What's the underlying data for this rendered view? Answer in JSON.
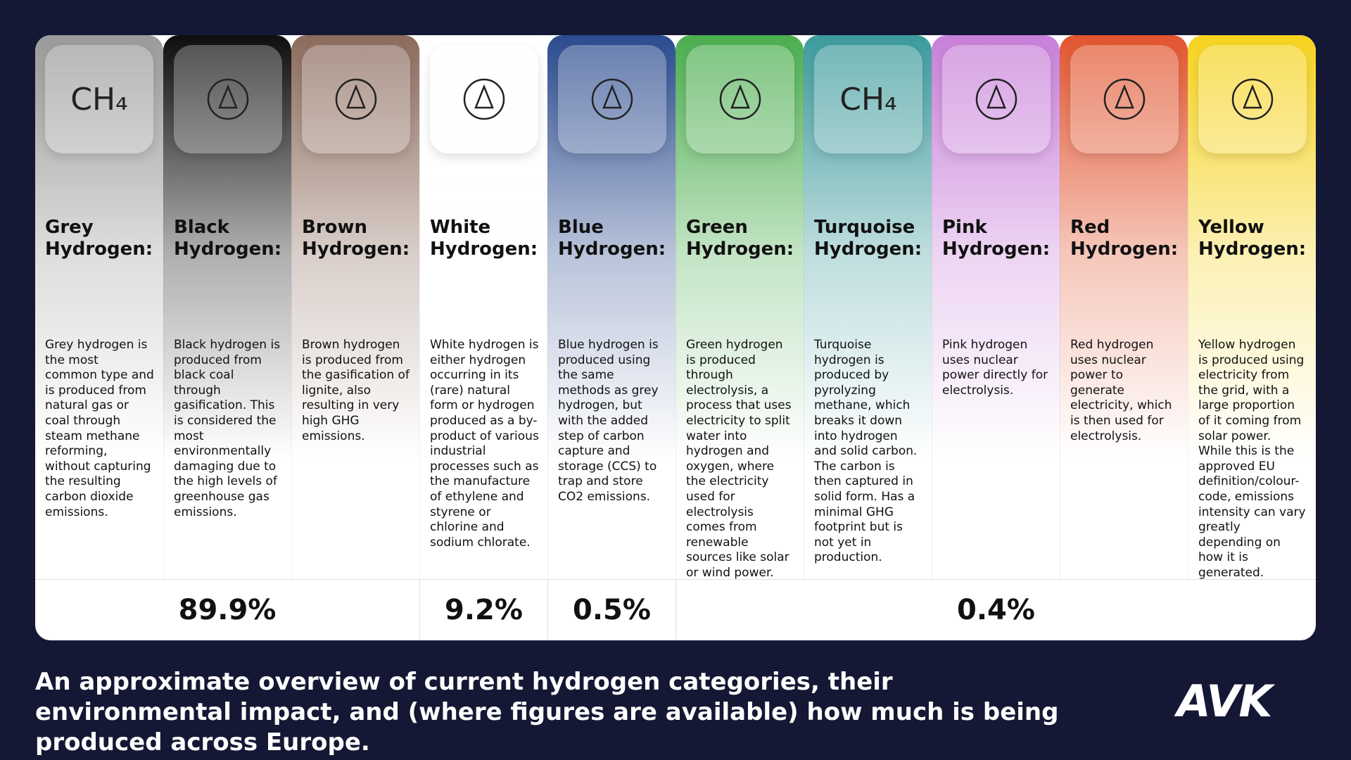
{
  "columns": [
    {
      "title": [
        "Grey",
        "Hydrogen:"
      ],
      "icon_text": "CH₄",
      "color": "#9a9a9a",
      "description": "Grey hydrogen is the most common type and is produced from natural gas or coal through steam methane reforming, without capturing the resulting carbon dioxide emissions."
    },
    {
      "title": [
        "Black",
        "Hydrogen:"
      ],
      "color": "#0e0e0e",
      "description": "Black hydrogen is produced from black coal through gasification. This is considered the most environmentally damaging due to the high levels of greenhouse gas emissions."
    },
    {
      "title": [
        "Brown",
        "Hydrogen:"
      ],
      "color": "#8c6b5c",
      "description": "Brown hydrogen is produced from the gasification of lignite, also resulting in very high GHG emissions."
    },
    {
      "title": [
        "White",
        "Hydrogen:"
      ],
      "color": "#ffffff",
      "description": "White hydrogen is either hydrogen occurring in its (rare) natural form or hydrogen produced as a by-product of various industrial processes such as the manufacture of ethylene and styrene or chlorine and sodium chlorate."
    },
    {
      "title": [
        "Blue",
        "Hydrogen:"
      ],
      "color": "#2b4b8f",
      "description": "Blue hydrogen is produced using the same methods as grey hydrogen, but with the added step of carbon capture and storage (CCS) to trap and store CO2 emissions."
    },
    {
      "title": [
        "Green",
        "Hydrogen:"
      ],
      "color": "#4bae4f",
      "description": "Green hydrogen is produced through electrolysis, a process that uses electricity to split water into hydrogen and oxygen, where the electricity used for electrolysis comes from renewable sources like solar or wind power."
    },
    {
      "title": [
        "Turquoise",
        "Hydrogen:"
      ],
      "icon_text": "CH₄",
      "color": "#3c9a9c",
      "description": "Turquoise hydrogen is produced by pyrolyzing methane, which breaks it down into hydrogen and solid carbon. The carbon is then captured in solid form. Has a minimal GHG footprint but is not yet in production."
    },
    {
      "title": [
        "Pink",
        "Hydrogen:"
      ],
      "color": "#c87fd9",
      "description": "Pink hydrogen uses nuclear power directly for electrolysis."
    },
    {
      "title": [
        "Red",
        "Hydrogen:"
      ],
      "color": "#e2552f",
      "description": "Red hydrogen uses nuclear power to generate electricity, which is then used for electrolysis."
    },
    {
      "title": [
        "Yellow",
        "Hydrogen:"
      ],
      "color": "#f6d31e",
      "description": "Yellow hydrogen is produced using electricity from the grid, with a large proportion of it coming from solar power. While this is the approved EU definition/colour-code, emissions intensity can vary greatly depending on how it is generated."
    }
  ],
  "shares": [
    {
      "text": "89.9%",
      "span": 3
    },
    {
      "text": "9.2%",
      "span": 1
    },
    {
      "text": "0.5%",
      "span": 1
    },
    {
      "text": "0.4%",
      "span": 5
    }
  ],
  "caption": "An approximate overview of current hydrogen categories, their environmental impact, and (where figures are available) how much is being produced across Europe.",
  "logo": "AVK"
}
